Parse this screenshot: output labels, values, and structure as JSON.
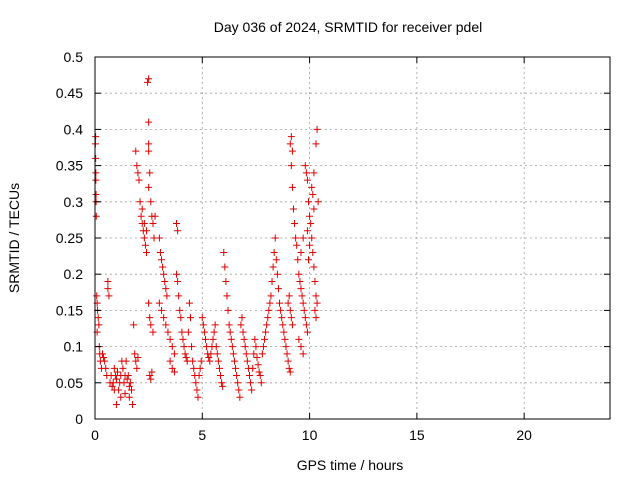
{
  "chart_data": {
    "type": "scatter",
    "title": "Day 036 of 2024, SRMTID for receiver pdel",
    "xlabel": "GPS time / hours",
    "ylabel": "SRMTID / TECUs",
    "xlim": [
      0,
      24
    ],
    "ylim": [
      0,
      0.5
    ],
    "xticks": [
      0,
      5,
      10,
      15,
      20
    ],
    "xtick_labels": [
      "0",
      "5",
      "10",
      "15",
      "20"
    ],
    "yticks": [
      0,
      0.05,
      0.1,
      0.15,
      0.2,
      0.25,
      0.3,
      0.35,
      0.4,
      0.45,
      0.5
    ],
    "ytick_labels": [
      "0",
      "0.05",
      "0.1",
      "0.15",
      "0.2",
      "0.25",
      "0.3",
      "0.35",
      "0.4",
      "0.45",
      "0.5"
    ],
    "grid": true,
    "marker": "+",
    "series": [
      {
        "name": "SRMTID",
        "color": "#e00000",
        "points": [
          [
            0.02,
            0.38
          ],
          [
            0.03,
            0.36
          ],
          [
            0.04,
            0.33
          ],
          [
            0.05,
            0.31
          ],
          [
            0.06,
            0.28
          ],
          [
            0.05,
            0.3
          ],
          [
            0.04,
            0.34
          ],
          [
            0.03,
            0.39
          ],
          [
            0.08,
            0.17
          ],
          [
            0.1,
            0.16
          ],
          [
            0.12,
            0.15
          ],
          [
            0.15,
            0.14
          ],
          [
            0.18,
            0.13
          ],
          [
            0.1,
            0.12
          ],
          [
            0.2,
            0.1
          ],
          [
            0.22,
            0.09
          ],
          [
            0.25,
            0.08
          ],
          [
            0.3,
            0.07
          ],
          [
            0.35,
            0.09
          ],
          [
            0.4,
            0.085
          ],
          [
            0.45,
            0.08
          ],
          [
            0.5,
            0.07
          ],
          [
            0.55,
            0.06
          ],
          [
            0.6,
            0.19
          ],
          [
            0.6,
            0.18
          ],
          [
            0.65,
            0.17
          ],
          [
            0.7,
            0.05
          ],
          [
            0.75,
            0.06
          ],
          [
            0.8,
            0.045
          ],
          [
            0.85,
            0.05
          ],
          [
            0.9,
            0.07
          ],
          [
            0.95,
            0.06
          ],
          [
            1.0,
            0.055
          ],
          [
            1.05,
            0.065
          ],
          [
            1.1,
            0.04
          ],
          [
            1.15,
            0.05
          ],
          [
            1.2,
            0.06
          ],
          [
            1.25,
            0.08
          ],
          [
            1.3,
            0.07
          ],
          [
            1.35,
            0.05
          ],
          [
            1.4,
            0.06
          ],
          [
            1.45,
            0.08
          ],
          [
            1.5,
            0.055
          ],
          [
            1.55,
            0.06
          ],
          [
            1.6,
            0.045
          ],
          [
            1.65,
            0.05
          ],
          [
            1.7,
            0.04
          ],
          [
            1.75,
            0.02
          ],
          [
            1.0,
            0.02
          ],
          [
            0.9,
            0.04
          ],
          [
            1.2,
            0.03
          ],
          [
            1.4,
            0.035
          ],
          [
            1.6,
            0.03
          ],
          [
            1.8,
            0.13
          ],
          [
            1.85,
            0.09
          ],
          [
            1.9,
            0.08
          ],
          [
            1.95,
            0.07
          ],
          [
            2.0,
            0.085
          ],
          [
            1.9,
            0.37
          ],
          [
            1.95,
            0.35
          ],
          [
            2.0,
            0.34
          ],
          [
            2.05,
            0.33
          ],
          [
            2.1,
            0.3
          ],
          [
            2.15,
            0.28
          ],
          [
            2.2,
            0.27
          ],
          [
            2.25,
            0.26
          ],
          [
            2.3,
            0.25
          ],
          [
            2.35,
            0.24
          ],
          [
            2.4,
            0.23
          ],
          [
            2.2,
            0.29
          ],
          [
            2.3,
            0.27
          ],
          [
            2.4,
            0.26
          ],
          [
            2.5,
            0.47
          ],
          [
            2.45,
            0.465
          ],
          [
            2.5,
            0.41
          ],
          [
            2.5,
            0.38
          ],
          [
            2.5,
            0.37
          ],
          [
            2.55,
            0.34
          ],
          [
            2.6,
            0.3
          ],
          [
            2.65,
            0.28
          ],
          [
            2.7,
            0.27
          ],
          [
            2.75,
            0.25
          ],
          [
            2.8,
            0.28
          ],
          [
            2.5,
            0.32
          ],
          [
            2.55,
            0.06
          ],
          [
            2.6,
            0.055
          ],
          [
            2.65,
            0.065
          ],
          [
            2.5,
            0.16
          ],
          [
            2.55,
            0.14
          ],
          [
            2.6,
            0.13
          ],
          [
            2.7,
            0.12
          ],
          [
            3.0,
            0.25
          ],
          [
            3.05,
            0.23
          ],
          [
            3.1,
            0.22
          ],
          [
            3.15,
            0.21
          ],
          [
            3.2,
            0.2
          ],
          [
            3.25,
            0.19
          ],
          [
            3.3,
            0.18
          ],
          [
            3.35,
            0.17
          ],
          [
            3.0,
            0.16
          ],
          [
            3.1,
            0.15
          ],
          [
            3.2,
            0.14
          ],
          [
            3.3,
            0.13
          ],
          [
            3.4,
            0.12
          ],
          [
            3.5,
            0.11
          ],
          [
            3.6,
            0.1
          ],
          [
            3.7,
            0.09
          ],
          [
            3.5,
            0.08
          ],
          [
            3.6,
            0.07
          ],
          [
            3.7,
            0.065
          ],
          [
            3.8,
            0.27
          ],
          [
            3.85,
            0.26
          ],
          [
            3.8,
            0.2
          ],
          [
            3.85,
            0.19
          ],
          [
            3.9,
            0.17
          ],
          [
            3.95,
            0.15
          ],
          [
            4.0,
            0.14
          ],
          [
            4.05,
            0.12
          ],
          [
            4.1,
            0.11
          ],
          [
            4.15,
            0.1
          ],
          [
            4.2,
            0.09
          ],
          [
            4.25,
            0.085
          ],
          [
            4.3,
            0.08
          ],
          [
            4.35,
            0.12
          ],
          [
            4.4,
            0.16
          ],
          [
            4.45,
            0.14
          ],
          [
            4.5,
            0.1
          ],
          [
            4.55,
            0.08
          ],
          [
            4.6,
            0.07
          ],
          [
            4.65,
            0.06
          ],
          [
            4.7,
            0.05
          ],
          [
            4.75,
            0.04
          ],
          [
            4.8,
            0.03
          ],
          [
            4.85,
            0.06
          ],
          [
            4.9,
            0.07
          ],
          [
            4.95,
            0.08
          ],
          [
            5.0,
            0.14
          ],
          [
            5.05,
            0.13
          ],
          [
            5.1,
            0.12
          ],
          [
            5.15,
            0.11
          ],
          [
            5.2,
            0.1
          ],
          [
            5.25,
            0.09
          ],
          [
            5.3,
            0.085
          ],
          [
            5.35,
            0.08
          ],
          [
            5.4,
            0.09
          ],
          [
            5.45,
            0.1
          ],
          [
            5.5,
            0.11
          ],
          [
            5.55,
            0.12
          ],
          [
            5.6,
            0.13
          ],
          [
            5.65,
            0.1
          ],
          [
            5.7,
            0.09
          ],
          [
            5.75,
            0.08
          ],
          [
            5.8,
            0.07
          ],
          [
            5.85,
            0.06
          ],
          [
            5.9,
            0.05
          ],
          [
            5.95,
            0.045
          ],
          [
            6.0,
            0.23
          ],
          [
            6.05,
            0.21
          ],
          [
            6.1,
            0.19
          ],
          [
            6.15,
            0.17
          ],
          [
            6.2,
            0.15
          ],
          [
            6.25,
            0.13
          ],
          [
            6.3,
            0.12
          ],
          [
            6.35,
            0.11
          ],
          [
            6.4,
            0.1
          ],
          [
            6.45,
            0.09
          ],
          [
            6.5,
            0.08
          ],
          [
            6.55,
            0.07
          ],
          [
            6.6,
            0.06
          ],
          [
            6.65,
            0.05
          ],
          [
            6.7,
            0.04
          ],
          [
            6.75,
            0.03
          ],
          [
            6.8,
            0.13
          ],
          [
            6.85,
            0.14
          ],
          [
            6.9,
            0.12
          ],
          [
            6.95,
            0.11
          ],
          [
            7.0,
            0.1
          ],
          [
            7.05,
            0.09
          ],
          [
            7.1,
            0.08
          ],
          [
            7.15,
            0.07
          ],
          [
            7.2,
            0.06
          ],
          [
            7.25,
            0.05
          ],
          [
            7.3,
            0.04
          ],
          [
            7.35,
            0.07
          ],
          [
            7.4,
            0.09
          ],
          [
            7.45,
            0.11
          ],
          [
            7.5,
            0.1
          ],
          [
            7.55,
            0.085
          ],
          [
            7.6,
            0.075
          ],
          [
            7.65,
            0.065
          ],
          [
            7.7,
            0.06
          ],
          [
            7.75,
            0.05
          ],
          [
            7.8,
            0.09
          ],
          [
            7.85,
            0.1
          ],
          [
            7.9,
            0.11
          ],
          [
            7.95,
            0.12
          ],
          [
            8.0,
            0.13
          ],
          [
            8.05,
            0.14
          ],
          [
            8.1,
            0.15
          ],
          [
            8.15,
            0.16
          ],
          [
            8.2,
            0.17
          ],
          [
            8.25,
            0.19
          ],
          [
            8.3,
            0.21
          ],
          [
            8.35,
            0.23
          ],
          [
            8.4,
            0.25
          ],
          [
            8.45,
            0.22
          ],
          [
            8.5,
            0.2
          ],
          [
            8.55,
            0.18
          ],
          [
            8.6,
            0.16
          ],
          [
            8.65,
            0.15
          ],
          [
            8.7,
            0.14
          ],
          [
            8.75,
            0.13
          ],
          [
            8.8,
            0.12
          ],
          [
            8.85,
            0.11
          ],
          [
            8.9,
            0.1
          ],
          [
            8.95,
            0.09
          ],
          [
            9.0,
            0.08
          ],
          [
            9.05,
            0.07
          ],
          [
            9.1,
            0.065
          ],
          [
            9.0,
            0.16
          ],
          [
            9.05,
            0.17
          ],
          [
            9.1,
            0.15
          ],
          [
            9.15,
            0.14
          ],
          [
            9.2,
            0.13
          ],
          [
            9.1,
            0.38
          ],
          [
            9.15,
            0.39
          ],
          [
            9.2,
            0.37
          ],
          [
            9.15,
            0.35
          ],
          [
            9.2,
            0.32
          ],
          [
            9.25,
            0.29
          ],
          [
            9.3,
            0.27
          ],
          [
            9.35,
            0.25
          ],
          [
            9.4,
            0.24
          ],
          [
            9.45,
            0.22
          ],
          [
            9.5,
            0.2
          ],
          [
            9.55,
            0.19
          ],
          [
            9.6,
            0.18
          ],
          [
            9.65,
            0.17
          ],
          [
            9.7,
            0.16
          ],
          [
            9.75,
            0.15
          ],
          [
            9.8,
            0.14
          ],
          [
            9.85,
            0.13
          ],
          [
            9.9,
            0.12
          ],
          [
            9.5,
            0.11
          ],
          [
            9.6,
            0.1
          ],
          [
            9.7,
            0.09
          ],
          [
            9.8,
            0.35
          ],
          [
            9.85,
            0.34
          ],
          [
            9.9,
            0.33
          ],
          [
            9.95,
            0.3
          ],
          [
            10.0,
            0.28
          ],
          [
            10.05,
            0.27
          ],
          [
            10.1,
            0.25
          ],
          [
            10.15,
            0.23
          ],
          [
            10.2,
            0.21
          ],
          [
            10.25,
            0.19
          ],
          [
            10.3,
            0.17
          ],
          [
            10.35,
            0.16
          ],
          [
            10.1,
            0.32
          ],
          [
            10.15,
            0.31
          ],
          [
            10.2,
            0.34
          ],
          [
            10.3,
            0.38
          ],
          [
            10.35,
            0.4
          ],
          [
            10.4,
            0.3
          ],
          [
            10.25,
            0.15
          ],
          [
            10.3,
            0.14
          ],
          [
            9.9,
            0.26
          ],
          [
            10.0,
            0.24
          ],
          [
            10.2,
            0.29
          ],
          [
            9.95,
            0.22
          ],
          [
            9.7,
            0.25
          ],
          [
            9.6,
            0.23
          ]
        ]
      }
    ]
  }
}
